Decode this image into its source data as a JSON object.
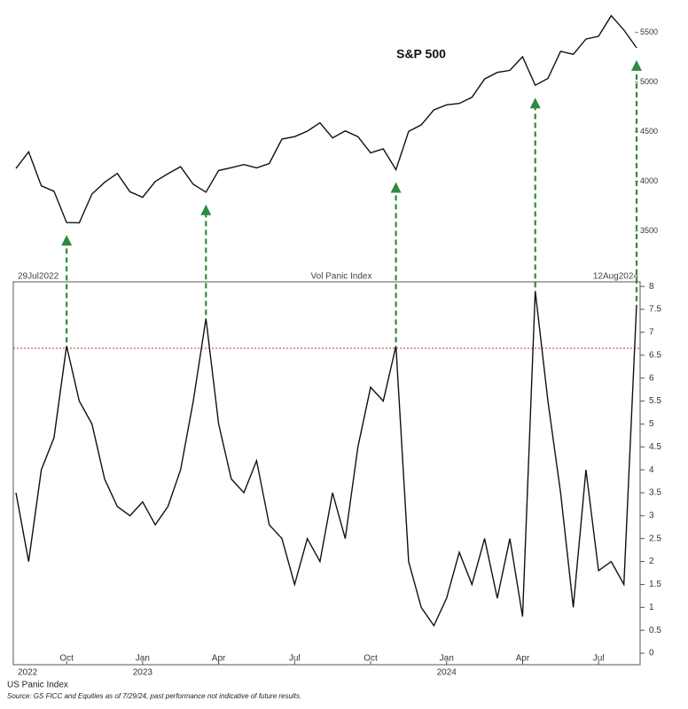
{
  "chart_data": [
    {
      "type": "line",
      "title": "S&P 500",
      "color": "#111111",
      "values": [
        4130,
        4297,
        3955,
        3901,
        3586,
        3583,
        3872,
        3991,
        4080,
        3895,
        3840,
        3999,
        4077,
        4148,
        3970,
        3892,
        4109,
        4138,
        4169,
        4136,
        4180,
        4426,
        4450,
        4505,
        4589,
        4437,
        4508,
        4450,
        4288,
        4327,
        4117,
        4502,
        4568,
        4719,
        4770,
        4784,
        4846,
        5030,
        5096,
        5117,
        5254,
        4967,
        5036,
        5308,
        5278,
        5431,
        5460,
        5667,
        5522,
        5344
      ],
      "ylim": [
        3150,
        5780
      ],
      "yticks": [
        3500,
        4000,
        4500,
        5000,
        5500
      ]
    },
    {
      "type": "line",
      "title": "Vol Panic Index",
      "color": "#111111",
      "start_label": "29Jul2022",
      "end_label": "12Aug2024",
      "categories": [
        null,
        null,
        null,
        null,
        "Oct",
        null,
        null,
        null,
        null,
        null,
        "Jan",
        null,
        null,
        null,
        null,
        null,
        "Apr",
        null,
        null,
        null,
        null,
        null,
        "Jul",
        null,
        null,
        null,
        null,
        null,
        "Oct",
        null,
        null,
        null,
        null,
        null,
        "Jan",
        null,
        null,
        null,
        null,
        null,
        "Apr",
        null,
        null,
        null,
        null,
        null,
        "Jul",
        null,
        null,
        null
      ],
      "years": [
        "2022",
        null,
        null,
        null,
        null,
        null,
        null,
        null,
        null,
        null,
        "2023",
        null,
        null,
        null,
        null,
        null,
        null,
        null,
        null,
        null,
        null,
        null,
        null,
        null,
        null,
        null,
        null,
        null,
        null,
        null,
        null,
        null,
        null,
        null,
        "2024",
        null,
        null,
        null,
        null,
        null,
        null,
        null,
        null,
        null,
        null,
        null,
        null,
        null,
        null,
        null
      ],
      "values": [
        3.5,
        2.0,
        4.0,
        4.7,
        6.7,
        5.5,
        5.0,
        3.8,
        3.2,
        3.0,
        3.3,
        2.8,
        3.2,
        4.0,
        5.5,
        7.3,
        5.0,
        3.8,
        3.5,
        4.2,
        2.8,
        2.5,
        1.5,
        2.5,
        2.0,
        3.5,
        2.5,
        4.5,
        5.8,
        5.5,
        6.7,
        2.0,
        1.0,
        0.6,
        1.2,
        2.2,
        1.5,
        2.5,
        1.2,
        2.5,
        0.8,
        7.9,
        5.5,
        3.5,
        1.0,
        4.0,
        1.8,
        2.0,
        1.5,
        7.6
      ],
      "threshold": 6.65,
      "threshold_color": "#c0392b",
      "arrow_color": "#2e8b3e",
      "ylim": [
        -0.25,
        8.1
      ],
      "yticks": [
        0,
        0.5,
        1,
        1.5,
        2,
        2.5,
        3,
        3.5,
        4,
        4.5,
        5,
        5.5,
        6,
        6.5,
        7,
        7.5,
        8
      ],
      "notes": [
        "US Panic Index",
        "Source: GS FICC and Equities as of 7/29/24, past performance not indicative of future results."
      ]
    }
  ]
}
